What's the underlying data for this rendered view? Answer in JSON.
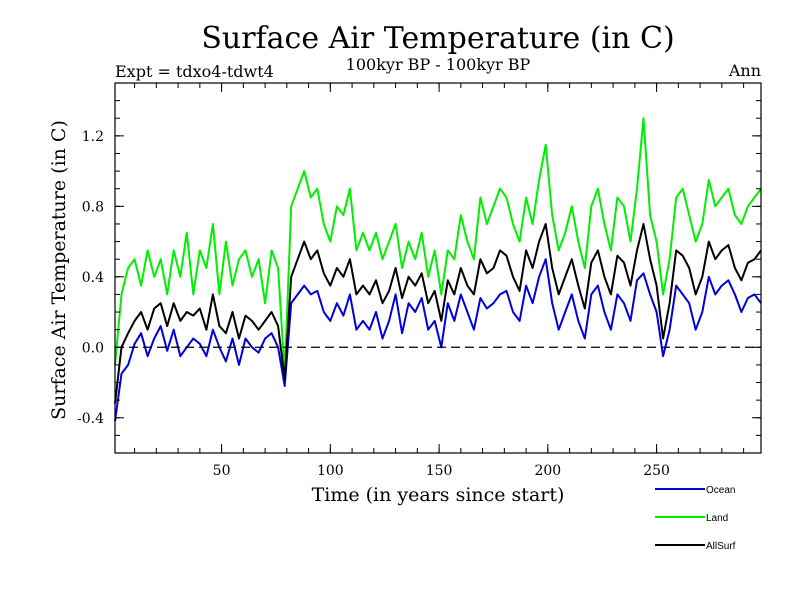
{
  "chart_data": {
    "type": "line",
    "title": "Surface Air Temperature (in C)",
    "subtitle_left": "Expt = tdxo4-tdwt4",
    "subtitle_center": "100kyr BP - 100kyr BP",
    "subtitle_right": "Ann",
    "xlabel": "Time (in years since start)",
    "ylabel": "Surface Air Temperature (in C)",
    "xlim": [
      1,
      298
    ],
    "ylim": [
      -0.6,
      1.5
    ],
    "x_ticks": [
      50,
      100,
      150,
      200,
      250
    ],
    "y_ticks": [
      -0.4,
      0.0,
      0.4,
      0.8,
      1.2
    ],
    "y_tick_labels": [
      "-0.4",
      "0.0",
      "0.4",
      "0.8",
      "1.2"
    ],
    "x_tick_labels": [
      "50",
      "100",
      "150",
      "200",
      "250"
    ],
    "reference_line": 0.0,
    "legend_position": "bottom-right, outside plot",
    "x_step": 3,
    "series": [
      {
        "name": "Ocean",
        "color": "#0000dd",
        "values": [
          -0.42,
          -0.15,
          -0.1,
          0.02,
          0.08,
          -0.05,
          0.05,
          0.12,
          -0.02,
          0.1,
          -0.05,
          0.0,
          0.05,
          0.02,
          -0.05,
          0.1,
          0.0,
          -0.08,
          0.05,
          -0.1,
          0.05,
          0.0,
          -0.03,
          0.05,
          0.08,
          0.0,
          -0.22,
          0.25,
          0.3,
          0.35,
          0.3,
          0.32,
          0.2,
          0.15,
          0.25,
          0.18,
          0.3,
          0.1,
          0.15,
          0.1,
          0.2,
          0.05,
          0.15,
          0.3,
          0.08,
          0.25,
          0.2,
          0.28,
          0.1,
          0.15,
          0.0,
          0.25,
          0.15,
          0.3,
          0.2,
          0.1,
          0.28,
          0.22,
          0.25,
          0.3,
          0.32,
          0.2,
          0.15,
          0.35,
          0.25,
          0.4,
          0.5,
          0.25,
          0.1,
          0.2,
          0.3,
          0.15,
          0.05,
          0.3,
          0.35,
          0.2,
          0.1,
          0.3,
          0.25,
          0.15,
          0.38,
          0.42,
          0.3,
          0.2,
          -0.05,
          0.1,
          0.35,
          0.3,
          0.25,
          0.1,
          0.2,
          0.4,
          0.3,
          0.35,
          0.38,
          0.3,
          0.2,
          0.28,
          0.3,
          0.25
        ]
      },
      {
        "name": "Land",
        "color": "#00ee00",
        "values": [
          -0.1,
          0.3,
          0.45,
          0.5,
          0.35,
          0.55,
          0.4,
          0.5,
          0.3,
          0.55,
          0.4,
          0.65,
          0.3,
          0.55,
          0.45,
          0.7,
          0.3,
          0.6,
          0.35,
          0.5,
          0.55,
          0.4,
          0.5,
          0.25,
          0.55,
          0.45,
          -0.15,
          0.8,
          0.9,
          1.0,
          0.85,
          0.9,
          0.7,
          0.6,
          0.8,
          0.75,
          0.9,
          0.55,
          0.65,
          0.55,
          0.65,
          0.5,
          0.6,
          0.7,
          0.45,
          0.6,
          0.5,
          0.65,
          0.4,
          0.55,
          0.3,
          0.55,
          0.5,
          0.75,
          0.6,
          0.5,
          0.85,
          0.7,
          0.8,
          0.9,
          0.85,
          0.7,
          0.6,
          0.85,
          0.7,
          0.95,
          1.15,
          0.75,
          0.55,
          0.65,
          0.8,
          0.6,
          0.45,
          0.8,
          0.9,
          0.7,
          0.55,
          0.85,
          0.8,
          0.6,
          0.9,
          1.3,
          0.75,
          0.6,
          0.3,
          0.5,
          0.85,
          0.9,
          0.75,
          0.6,
          0.7,
          0.95,
          0.8,
          0.85,
          0.9,
          0.75,
          0.7,
          0.8,
          0.85,
          0.9
        ]
      },
      {
        "name": "AllSurf",
        "color": "#000000",
        "values": [
          -0.32,
          0.0,
          0.08,
          0.15,
          0.2,
          0.1,
          0.22,
          0.25,
          0.12,
          0.25,
          0.15,
          0.2,
          0.18,
          0.22,
          0.1,
          0.3,
          0.12,
          0.08,
          0.2,
          0.05,
          0.18,
          0.15,
          0.1,
          0.15,
          0.2,
          0.12,
          -0.18,
          0.4,
          0.5,
          0.6,
          0.5,
          0.55,
          0.42,
          0.35,
          0.45,
          0.4,
          0.5,
          0.3,
          0.35,
          0.3,
          0.38,
          0.25,
          0.32,
          0.45,
          0.28,
          0.4,
          0.35,
          0.42,
          0.25,
          0.32,
          0.15,
          0.38,
          0.3,
          0.45,
          0.35,
          0.3,
          0.5,
          0.42,
          0.45,
          0.55,
          0.52,
          0.4,
          0.32,
          0.55,
          0.45,
          0.6,
          0.7,
          0.45,
          0.3,
          0.4,
          0.5,
          0.35,
          0.22,
          0.48,
          0.55,
          0.4,
          0.3,
          0.52,
          0.48,
          0.35,
          0.55,
          0.7,
          0.5,
          0.35,
          0.05,
          0.25,
          0.55,
          0.52,
          0.45,
          0.3,
          0.4,
          0.6,
          0.5,
          0.55,
          0.58,
          0.45,
          0.38,
          0.48,
          0.5,
          0.55
        ]
      }
    ]
  }
}
